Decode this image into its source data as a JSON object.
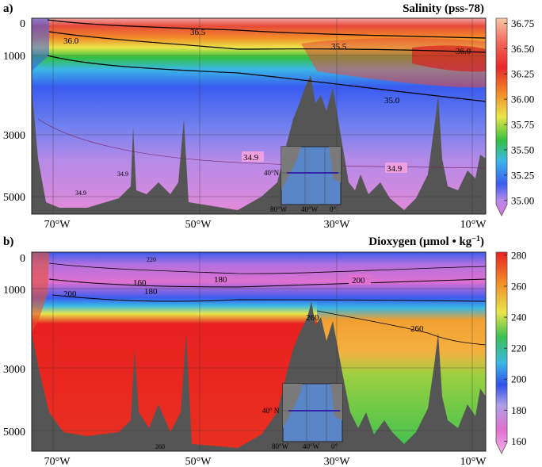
{
  "panels": [
    {
      "letter": "a)",
      "title": "Salinity (pss-78)",
      "yticks": [
        "0",
        "1000",
        "3000",
        "5000"
      ],
      "xticks": [
        "70°W",
        "50°W",
        "30°W",
        "10°W"
      ],
      "colorbar_ticks": [
        "36.75",
        "36.50",
        "36.25",
        "36.00",
        "35.75",
        "35.50",
        "35.25",
        "35.00"
      ],
      "contour_labels": [
        "36.0",
        "36.5",
        "35.5",
        "36.0",
        "35.0",
        "34.9",
        "34.9",
        "34.9",
        "34.9"
      ],
      "inset": {
        "lat_label": "40°N",
        "lon_labels": [
          "80°W",
          "40°W",
          "0°"
        ]
      }
    },
    {
      "letter": "b)",
      "title_main": "Dioxygen (μmol • kg",
      "title_sup": "−1",
      "title_close": ")",
      "yticks": [
        "0",
        "1000",
        "3000",
        "5000"
      ],
      "xticks": [
        "70°W",
        "50°W",
        "30°W",
        "10°W"
      ],
      "colorbar_ticks": [
        "280",
        "260",
        "240",
        "220",
        "200",
        "180",
        "160"
      ],
      "contour_labels": [
        "160",
        "180",
        "200",
        "180",
        "200",
        "260",
        "260",
        "220",
        "260"
      ],
      "inset": {
        "lat_label": "40° N",
        "lon_labels": [
          "80°W",
          "40°W",
          "0°"
        ]
      }
    }
  ],
  "chart_data": [
    {
      "type": "heatmap",
      "title": "Salinity (pss-78)",
      "xlabel": "",
      "ylabel": "",
      "x_ticks": [
        "70°W",
        "50°W",
        "30°W",
        "10°W"
      ],
      "y_ticks": [
        0,
        1000,
        3000,
        5000
      ],
      "colorbar": {
        "min": 34.85,
        "max": 36.8,
        "ticks": [
          36.75,
          36.5,
          36.25,
          36.0,
          35.75,
          35.5,
          35.25,
          35.0
        ]
      },
      "contours": [
        34.9,
        35.0,
        35.5,
        36.0,
        36.5
      ],
      "grid": true,
      "colors": {
        "high": "#f0a0a0",
        "red": "#e83030",
        "orange": "#f28c28",
        "yellow": "#e9e64a",
        "green": "#2fbf3a",
        "cyan": "#3ab8e6",
        "blue": "#3a5cf0",
        "violet": "#b48ae8",
        "pink": "#e48ad8",
        "topo": "#555555"
      }
    },
    {
      "type": "heatmap",
      "title": "Dioxygen (μmol • kg−1)",
      "xlabel": "",
      "ylabel": "",
      "x_ticks": [
        "70°W",
        "50°W",
        "30°W",
        "10°W"
      ],
      "y_ticks": [
        0,
        1000,
        3000,
        5000
      ],
      "colorbar": {
        "min": 152,
        "max": 282,
        "ticks": [
          280,
          260,
          240,
          220,
          200,
          180,
          160
        ]
      },
      "contours": [
        160,
        180,
        200,
        220,
        260
      ],
      "grid": true,
      "colors": {
        "high": "#e82020",
        "orange": "#f28c28",
        "yellow": "#e9e64a",
        "green": "#3cc050",
        "cyan": "#3ab8e6",
        "blue": "#3050e8",
        "violet": "#b060e0",
        "pink": "#e070d0",
        "topo": "#555555"
      }
    }
  ]
}
